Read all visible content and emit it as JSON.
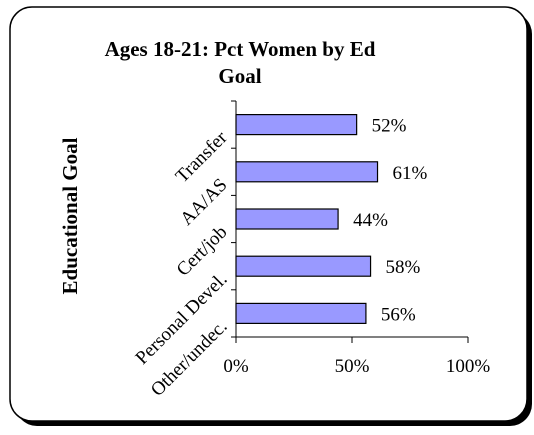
{
  "chart_data": {
    "type": "bar",
    "orientation": "horizontal",
    "title_lines": [
      "Ages 18-21: Pct Women by Ed",
      "Goal"
    ],
    "ylabel": "Educational Goal",
    "xlabel": "",
    "categories": [
      "Transfer",
      "AA/AS",
      "Cert/job",
      "Personal Devel.",
      "Other/undec."
    ],
    "values": [
      52,
      61,
      44,
      58,
      56
    ],
    "value_labels": [
      "52%",
      "61%",
      "44%",
      "58%",
      "56%"
    ],
    "xlim": [
      0,
      100
    ],
    "x_ticks": [
      0,
      50,
      100
    ],
    "x_tick_labels": [
      "0%",
      "50%",
      "100%"
    ],
    "bar_color": "#9999ff",
    "grid": false,
    "legend": "none"
  }
}
